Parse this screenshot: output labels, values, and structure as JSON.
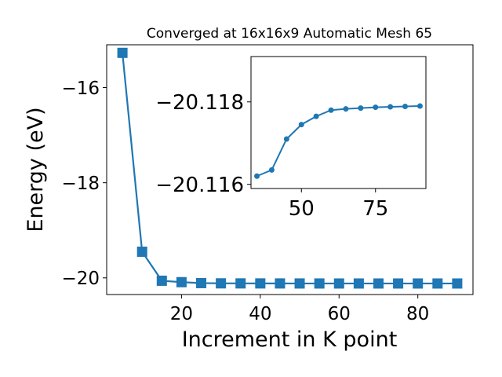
{
  "chart_data": [
    {
      "type": "line",
      "title": "Converged at 16x16x9 Automatic Mesh 65",
      "xlabel": "Increment in K point",
      "ylabel": "Energy (eV)",
      "xlim": [
        1,
        94
      ],
      "ylim": [
        -20.35,
        -15.1
      ],
      "x_ticks": [
        20,
        40,
        60,
        80
      ],
      "y_ticks": [
        -16,
        -18,
        -20
      ],
      "x_tick_labels": [
        "20",
        "40",
        "60",
        "80"
      ],
      "y_tick_labels": [
        "−16",
        "−18",
        "−20"
      ],
      "grid": false,
      "marker": "square",
      "color": "#1f77b4",
      "series": [
        {
          "x": [
            5,
            10,
            15,
            20,
            25,
            30,
            35,
            40,
            45,
            50,
            55,
            60,
            65,
            70,
            75,
            80,
            85,
            90
          ],
          "y": [
            -15.27,
            -19.45,
            -20.06,
            -20.09,
            -20.11,
            -20.115,
            -20.116,
            -20.1165,
            -20.117,
            -20.1175,
            -20.1178,
            -20.118,
            -20.118,
            -20.118,
            -20.118,
            -20.118,
            -20.118,
            -20.118
          ]
        }
      ]
    },
    {
      "type": "line",
      "role": "inset",
      "title": "",
      "xlabel": "",
      "ylabel": "",
      "xlim": [
        33,
        92
      ],
      "ylim": [
        -20.1159,
        -20.1191
      ],
      "x_ticks": [
        50,
        75
      ],
      "y_ticks": [
        -20.118,
        -20.116
      ],
      "x_tick_labels": [
        "50",
        "75"
      ],
      "y_tick_labels": [
        "−20.118",
        "−20.116"
      ],
      "grid": false,
      "marker": "circle",
      "color": "#1f77b4",
      "series": [
        {
          "x": [
            35,
            40,
            45,
            50,
            55,
            60,
            65,
            70,
            75,
            80,
            85,
            90
          ],
          "y": [
            -20.1162,
            -20.11635,
            -20.1171,
            -20.11745,
            -20.11765,
            -20.1178,
            -20.11783,
            -20.11785,
            -20.11787,
            -20.11788,
            -20.11789,
            -20.1179
          ]
        }
      ]
    }
  ]
}
